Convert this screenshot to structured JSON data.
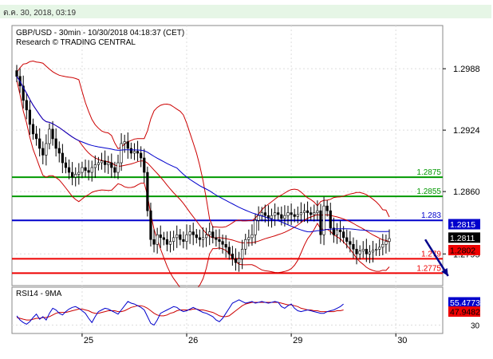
{
  "timestamp": "ต.ค. 30, 2018, 03:19",
  "colors": {
    "candles": "#000000",
    "bollinger": "#cc0000",
    "ma": "#0000cc",
    "support": "#ee0000",
    "resistance": "#009900",
    "pivot": "#0000cc",
    "rsi": "#0000cc",
    "rsi_ma": "#cc0000",
    "arrow": "#00008b"
  },
  "chart_data": [
    {
      "type": "candlestick",
      "title": "GBP/USD - 30min - 10/30/2018 04:18:37 (CET)",
      "subtitle": "Research © TRADING CENTRAL",
      "ylim": [
        1.2762,
        1.3033
      ],
      "yticks": [
        1.2988,
        1.2924,
        1.286,
        1.2795
      ],
      "ytick_labels": [
        "1.2988",
        "1.2924",
        "1.2860",
        "1.2795"
      ],
      "x_labels": [
        {
          "label": "25",
          "index": 20
        },
        {
          "label": "26",
          "index": 52
        },
        {
          "label": "29",
          "index": 84
        },
        {
          "label": "30",
          "index": 116
        }
      ],
      "horizontal_levels": [
        {
          "value": 1.2875,
          "label": "1.2875",
          "kind": "resistance"
        },
        {
          "value": 1.2855,
          "label": "1.2855",
          "kind": "resistance"
        },
        {
          "value": 1.283,
          "label": "1.283",
          "kind": "pivot"
        },
        {
          "value": 1.279,
          "label": "1.279",
          "kind": "support"
        },
        {
          "value": 1.2775,
          "label": "1.2775",
          "kind": "support"
        }
      ],
      "price_tags": [
        {
          "value": 1.2815,
          "label": "1.2815",
          "bg": "#0000cc",
          "fg": "#ffffff",
          "y": 1.2826
        },
        {
          "value": 1.2811,
          "label": "1.2811",
          "bg": "#000000",
          "fg": "#ffffff",
          "y": 1.2812
        },
        {
          "value": 1.2802,
          "label": "1.2802",
          "bg": "#ee0000",
          "fg": "#000000",
          "y": 1.2799
        }
      ],
      "arrow": {
        "from_index": 125,
        "from_value": 1.281,
        "to_index": 132,
        "to_value": 1.2772
      },
      "close": [
        1.298,
        1.297,
        1.2955,
        1.2945,
        1.293,
        1.292,
        1.2915,
        1.2905,
        1.2898,
        1.291,
        1.2925,
        1.2915,
        1.2905,
        1.29,
        1.289,
        1.2885,
        1.288,
        1.2875,
        1.2878,
        1.288,
        1.2885,
        1.2882,
        1.288,
        1.2885,
        1.2888,
        1.289,
        1.2892,
        1.2888,
        1.289,
        1.2885,
        1.288,
        1.289,
        1.291,
        1.2912,
        1.2905,
        1.29,
        1.2902,
        1.29,
        1.2895,
        1.288,
        1.284,
        1.281,
        1.2805,
        1.2815,
        1.2812,
        1.281,
        1.2805,
        1.2808,
        1.2812,
        1.2815,
        1.281,
        1.2808,
        1.2815,
        1.2818,
        1.2815,
        1.2812,
        1.281,
        1.2812,
        1.2815,
        1.2818,
        1.2812,
        1.281,
        1.2808,
        1.2805,
        1.2802,
        1.2795,
        1.279,
        1.2786,
        1.279,
        1.28,
        1.281,
        1.2812,
        1.2815,
        1.283,
        1.2835,
        1.2838,
        1.2835,
        1.2832,
        1.2835,
        1.2838,
        1.2836,
        1.2832,
        1.2835,
        1.2838,
        1.2836,
        1.2834,
        1.2836,
        1.2838,
        1.284,
        1.2838,
        1.2836,
        1.2838,
        1.284,
        1.2815,
        1.2845,
        1.284,
        1.2822,
        1.2815,
        1.282,
        1.2818,
        1.2812,
        1.2808,
        1.2805,
        1.28,
        1.2795,
        1.2798,
        1.28,
        1.2795,
        1.2797,
        1.2799,
        1.28,
        1.2802,
        1.2805,
        1.2808,
        1.2811
      ]
    },
    {
      "type": "line",
      "title": "RSI14 - 9MA",
      "ylim": [
        20,
        75
      ],
      "ytick_labels": [
        "30"
      ],
      "ytick_values": [
        30
      ],
      "price_tags": [
        {
          "value": 55.4773,
          "label": "55.4773",
          "bg": "#0000cc",
          "fg": "#ffffff",
          "y": 57
        },
        {
          "value": 47.9482,
          "label": "47.9482",
          "bg": "#ee0000",
          "fg": "#000000",
          "y": 46
        }
      ],
      "series": [
        {
          "values": [
            41,
            36,
            33,
            31,
            34,
            39,
            43,
            37,
            40,
            36,
            44,
            50,
            48,
            44,
            42,
            46,
            49,
            51,
            52,
            50,
            47,
            44,
            38,
            33,
            40,
            46,
            48,
            50,
            49,
            47,
            45,
            43,
            48,
            53,
            58,
            56,
            55,
            53,
            51,
            48,
            40,
            32,
            30,
            36,
            44,
            46,
            48,
            50,
            52,
            51,
            48,
            46,
            47,
            49,
            51,
            49,
            47,
            45,
            44,
            42,
            40,
            36,
            34,
            38,
            44,
            50,
            56,
            58,
            60,
            58,
            56,
            57,
            58,
            56,
            57,
            58,
            57,
            56,
            57,
            58,
            57,
            52,
            50,
            53,
            55,
            50,
            47,
            46,
            47,
            48,
            47,
            46,
            45,
            44,
            44,
            46,
            47,
            48,
            50,
            52,
            55
          ]
        },
        {
          "values": [
            39,
            38,
            37,
            36,
            36,
            37,
            38,
            38,
            39,
            39,
            40,
            42,
            44,
            45,
            45,
            45,
            46,
            47,
            48,
            49,
            49,
            48,
            47,
            45,
            44,
            44,
            45,
            46,
            47,
            47,
            47,
            46,
            46,
            47,
            49,
            51,
            52,
            53,
            53,
            52,
            50,
            47,
            44,
            42,
            41,
            41,
            42,
            44,
            45,
            47,
            48,
            48,
            48,
            48,
            49,
            49,
            48,
            48,
            47,
            46,
            45,
            43,
            41,
            40,
            40,
            41,
            44,
            47,
            50,
            53,
            55,
            56,
            57,
            57,
            57,
            57,
            57,
            57,
            57,
            57,
            57,
            56,
            55,
            54,
            54,
            53,
            52,
            50,
            49,
            48,
            48,
            47,
            47,
            46,
            46,
            46,
            46,
            46,
            47,
            47,
            48
          ]
        }
      ]
    }
  ]
}
